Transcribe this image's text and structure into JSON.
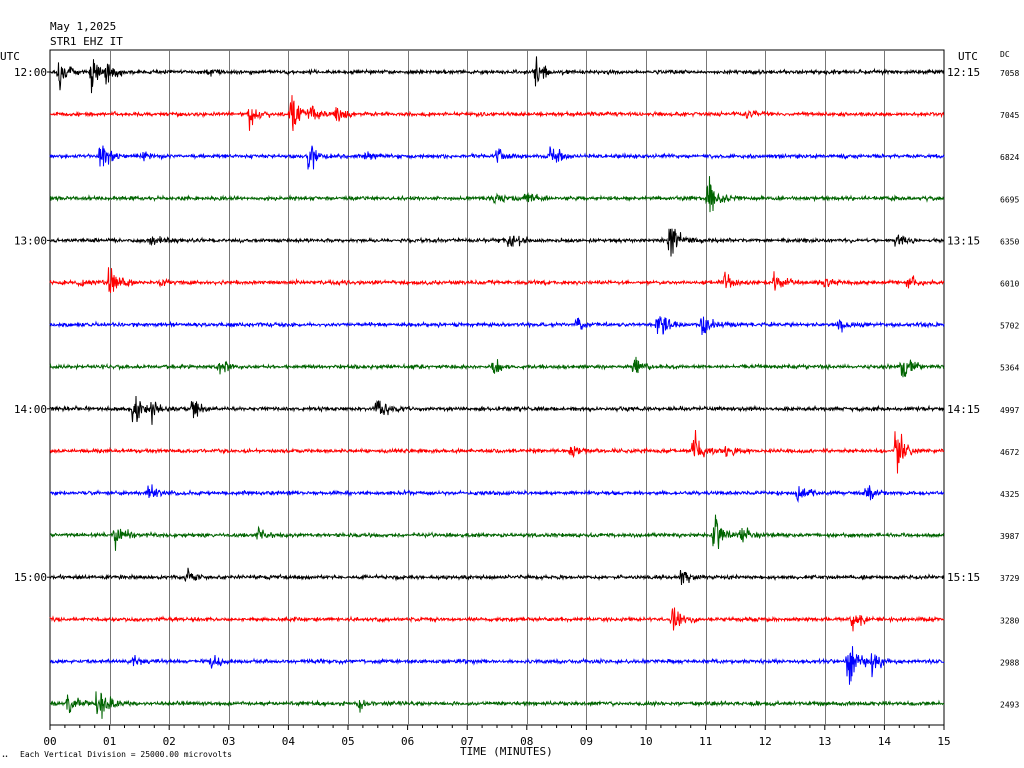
{
  "header": {
    "date": "May 1,2025",
    "station": "STR1 EHZ IT"
  },
  "left_utc_label": "UTC",
  "right_utc_label": "UTC",
  "dc_label": "DC",
  "footer": {
    "xlabel": "TIME (MINUTES)",
    "scale_note": "Each Vertical Division = 25000.00 microvolts",
    "corner_mark": "••"
  },
  "chart_data": {
    "type": "line",
    "xlabel": "TIME (MINUTES)",
    "xlim": [
      0,
      15
    ],
    "x_ticks": [
      "00",
      "01",
      "02",
      "03",
      "04",
      "05",
      "06",
      "07",
      "08",
      "09",
      "10",
      "11",
      "12",
      "13",
      "14",
      "15"
    ],
    "left_hour_labels": [
      "12:00",
      "13:00",
      "14:00",
      "15:00"
    ],
    "right_hour_labels": [
      "12:15",
      "13:15",
      "14:15",
      "15:15"
    ],
    "trace_colors": [
      "#000000",
      "#ff0000",
      "#0000ff",
      "#006400"
    ],
    "dc_values": [
      "7058",
      "7045",
      "6824",
      "6695",
      "6350",
      "6010",
      "5702",
      "5364",
      "4997",
      "4672",
      "4325",
      "3987",
      "3729",
      "3280",
      "2988",
      "2493"
    ],
    "events": [
      [
        [
          0.15,
          1.0
        ],
        [
          0.7,
          0.8
        ],
        [
          0.95,
          0.4
        ],
        [
          2.65,
          0.2
        ],
        [
          8.15,
          0.7
        ]
      ],
      [
        [
          3.35,
          0.6
        ],
        [
          4.05,
          1.0
        ],
        [
          4.4,
          0.3
        ],
        [
          4.8,
          0.3
        ],
        [
          11.7,
          0.2
        ]
      ],
      [
        [
          0.85,
          0.8
        ],
        [
          1.55,
          0.2
        ],
        [
          4.35,
          0.9
        ],
        [
          5.3,
          0.2
        ],
        [
          7.5,
          0.3
        ],
        [
          8.4,
          0.5
        ]
      ],
      [
        [
          7.45,
          0.3
        ],
        [
          8.0,
          0.3
        ],
        [
          11.05,
          1.0
        ]
      ],
      [
        [
          1.7,
          0.3
        ],
        [
          7.7,
          0.4
        ],
        [
          10.4,
          1.0
        ],
        [
          14.2,
          0.3
        ]
      ],
      [
        [
          0.5,
          0.2
        ],
        [
          1.0,
          0.8
        ],
        [
          1.85,
          0.2
        ],
        [
          11.3,
          0.5
        ],
        [
          12.15,
          0.5
        ],
        [
          13.0,
          0.2
        ],
        [
          14.4,
          0.3
        ]
      ],
      [
        [
          8.85,
          0.3
        ],
        [
          10.2,
          0.7
        ],
        [
          10.95,
          0.6
        ],
        [
          13.25,
          0.3
        ]
      ],
      [
        [
          2.85,
          0.3
        ],
        [
          7.45,
          0.3
        ],
        [
          9.8,
          0.4
        ],
        [
          14.3,
          0.7
        ]
      ],
      [
        [
          1.4,
          0.8
        ],
        [
          1.7,
          0.4
        ],
        [
          2.4,
          0.4
        ],
        [
          5.5,
          0.5
        ]
      ],
      [
        [
          8.75,
          0.3
        ],
        [
          10.8,
          0.6
        ],
        [
          11.35,
          0.3
        ],
        [
          14.2,
          1.0
        ]
      ],
      [
        [
          1.65,
          0.3
        ],
        [
          12.55,
          0.4
        ],
        [
          13.7,
          0.3
        ]
      ],
      [
        [
          1.1,
          0.7
        ],
        [
          3.5,
          0.3
        ],
        [
          11.15,
          0.9
        ],
        [
          11.6,
          0.4
        ]
      ],
      [
        [
          2.3,
          0.3
        ],
        [
          10.6,
          0.3
        ]
      ],
      [
        [
          10.45,
          1.0
        ],
        [
          13.45,
          0.4
        ]
      ],
      [
        [
          1.4,
          0.2
        ],
        [
          2.7,
          0.4
        ],
        [
          13.4,
          1.0
        ],
        [
          13.8,
          0.6
        ]
      ],
      [
        [
          0.3,
          0.4
        ],
        [
          0.8,
          1.0
        ],
        [
          5.2,
          0.2
        ]
      ]
    ]
  }
}
